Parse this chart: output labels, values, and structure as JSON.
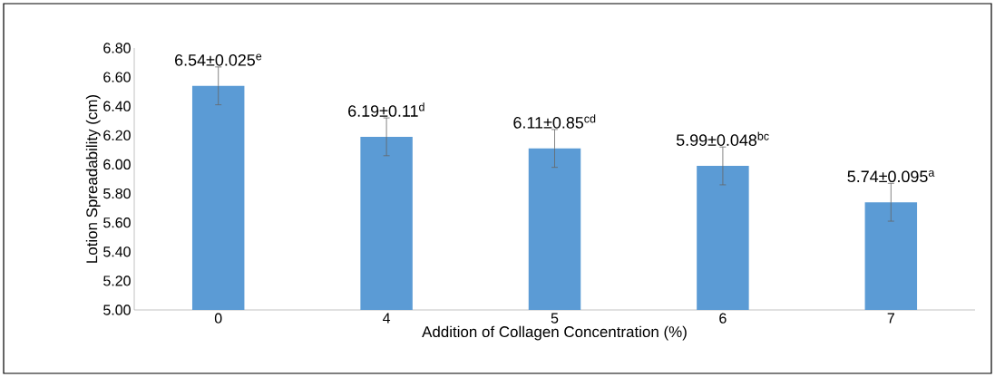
{
  "chart_data": {
    "type": "bar",
    "xlabel": "Addition of Collagen  Concentration (%)",
    "ylabel": "Lotion Spreadability (cm)",
    "categories": [
      "0",
      "4",
      "5",
      "6",
      "7"
    ],
    "values": [
      6.54,
      6.19,
      6.11,
      5.99,
      5.74
    ],
    "errors": [
      0.13,
      0.13,
      0.13,
      0.13,
      0.13
    ],
    "value_labels": [
      "6.54±0.025$^{e}$",
      "6.19±0.11$^{d}$",
      "6.11±0.85$^{cd}$",
      "5.99±0.048$^{bc}$",
      "5.74±0.095$^{a}$"
    ],
    "color": "#5b9bd5",
    "ylim": [
      5.0,
      6.8
    ],
    "yticks": [
      {
        "value": 5.0,
        "label": "5.00"
      },
      {
        "value": 5.2,
        "label": "5.20"
      },
      {
        "value": 5.4,
        "label": "5.40"
      },
      {
        "value": 5.6,
        "label": "5.60"
      },
      {
        "value": 5.8,
        "label": "5.80"
      },
      {
        "value": 6.0,
        "label": "6.00"
      },
      {
        "value": 6.2,
        "label": "6.20"
      },
      {
        "value": 6.4,
        "label": "6.40"
      },
      {
        "value": 6.6,
        "label": "6.60"
      },
      {
        "value": 6.8,
        "label": "6.80"
      }
    ]
  }
}
